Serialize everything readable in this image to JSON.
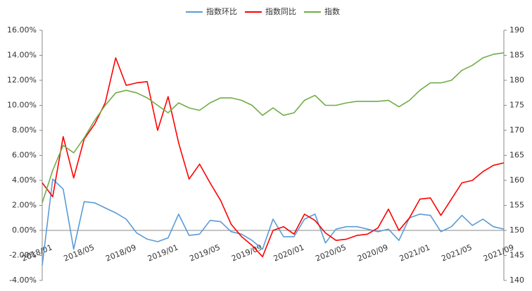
{
  "chart_data": {
    "type": "line",
    "categories": [
      "2018/01",
      null,
      null,
      null,
      "2018/05",
      null,
      null,
      null,
      "2018/09",
      null,
      null,
      null,
      "2019/01",
      null,
      null,
      null,
      "2019/05",
      null,
      null,
      null,
      "2019/09",
      null,
      null,
      null,
      "2020/01",
      null,
      null,
      null,
      "2020/05",
      null,
      null,
      null,
      "2020/09",
      null,
      null,
      null,
      "2021/01",
      null,
      null,
      null,
      "2021/05",
      null,
      null,
      null,
      "2021/09"
    ],
    "series": [
      {
        "name": "指数环比",
        "color": "#5b9bd5",
        "values": [
          -2.8,
          4.1,
          3.3,
          -1.5,
          2.3,
          2.2,
          1.8,
          1.4,
          0.9,
          -0.2,
          -0.7,
          -0.9,
          -0.6,
          1.3,
          -0.4,
          -0.3,
          0.8,
          0.7,
          -0.1,
          -0.3,
          -0.8,
          -1.5,
          0.9,
          -0.5,
          -0.5,
          0.9,
          1.3,
          -1.0,
          0.1,
          0.3,
          0.3,
          0.1,
          -0.1,
          0.1,
          -0.8,
          1.0,
          1.3,
          1.2,
          -0.1,
          0.3,
          1.2,
          0.4,
          0.9,
          0.3,
          0.1
        ]
      },
      {
        "name": "指数同比",
        "color": "#ff0000",
        "values": [
          3.8,
          2.7,
          7.5,
          4.2,
          7.3,
          8.5,
          10.2,
          13.8,
          11.6,
          11.8,
          11.9,
          8.0,
          10.7,
          7.0,
          4.1,
          5.3,
          3.8,
          2.4,
          0.5,
          -0.5,
          -1.2,
          -2.1,
          0.0,
          0.3,
          -0.3,
          1.3,
          0.8,
          -0.2,
          -0.8,
          -0.7,
          -0.4,
          -0.3,
          0.2,
          1.7,
          0.0,
          1.0,
          2.5,
          2.6,
          1.2,
          2.5,
          3.8,
          4.0,
          4.7,
          5.2,
          5.4
        ]
      },
      {
        "name": "指数",
        "color": "#70ad47",
        "axis": "y2",
        "values": [
          155.5,
          162,
          167,
          165.5,
          168.5,
          172,
          175,
          177.5,
          178,
          177.5,
          176.5,
          175,
          173.5,
          175.5,
          174.5,
          174,
          175.5,
          176.5,
          176.5,
          176,
          175,
          173,
          174.5,
          173,
          173.5,
          176,
          177,
          175,
          175,
          175.5,
          175.8,
          175.8,
          175.8,
          176,
          174.7,
          176,
          178,
          179.5,
          179.5,
          180,
          182,
          183,
          184.5,
          185.2,
          185.5
        ]
      }
    ],
    "ylim": [
      -4,
      16
    ],
    "yticks": [
      {
        "value": -4,
        "label": "-4.00%"
      },
      {
        "value": -2,
        "label": "-2.00%"
      },
      {
        "value": 0,
        "label": "0.00%"
      },
      {
        "value": 2,
        "label": "2.00%"
      },
      {
        "value": 4,
        "label": "4.00%"
      },
      {
        "value": 6,
        "label": "6.00%"
      },
      {
        "value": 8,
        "label": "8.00%"
      },
      {
        "value": 10,
        "label": "10.00%"
      },
      {
        "value": 12,
        "label": "12.00%"
      },
      {
        "value": 14,
        "label": "14.00%"
      },
      {
        "value": 16,
        "label": "16.00%"
      }
    ],
    "y2lim": [
      140,
      190
    ],
    "y2ticks": [
      140,
      145,
      150,
      155,
      160,
      165,
      170,
      175,
      180,
      185,
      190
    ],
    "legend": "top"
  }
}
